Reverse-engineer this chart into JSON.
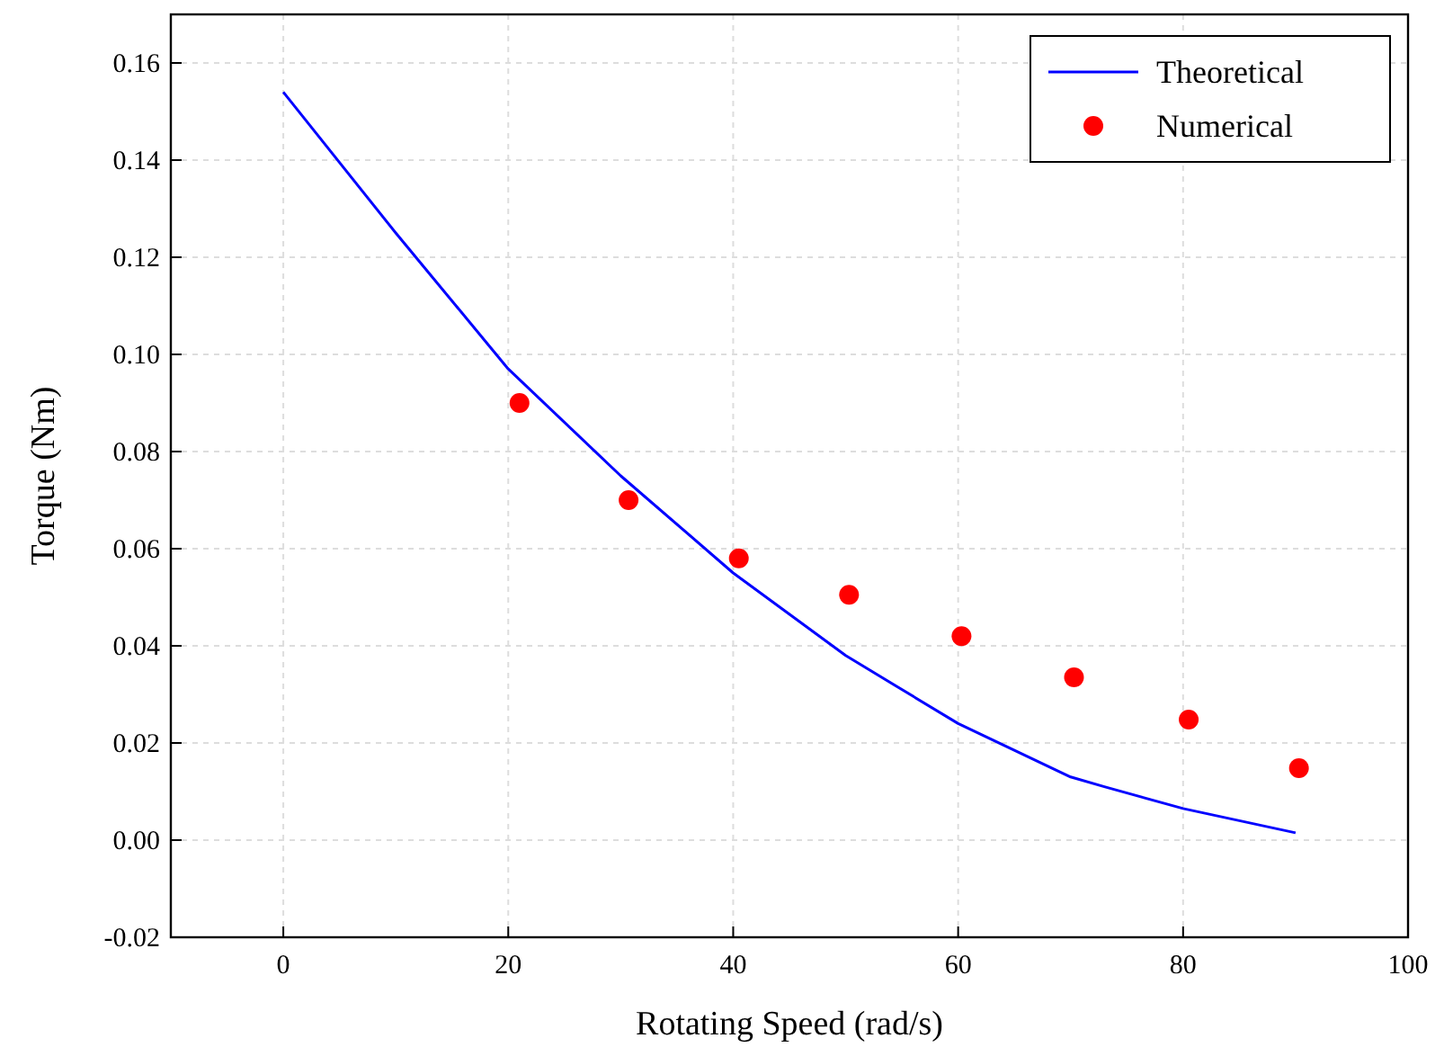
{
  "chart_data": {
    "type": "line",
    "xlabel": "Rotating Speed (rad/s)",
    "ylabel": "Torque (Nm)",
    "xlim": [
      -10,
      100
    ],
    "xticks": [
      0,
      20,
      40,
      60,
      80,
      100
    ],
    "ylim": [
      -0.02,
      0.17
    ],
    "yticks": [
      -0.02,
      {
        "value": 0,
        "label": "0.00"
      },
      0.02,
      0.04,
      0.06,
      0.08,
      {
        "value": 0.1,
        "label": "0.10"
      },
      0.12,
      0.14,
      0.16
    ],
    "grid": true,
    "legend": "top right",
    "series": [
      {
        "name": "Theoretical",
        "color": "#0000ff",
        "marker": "none",
        "x": [
          0,
          10,
          20,
          30,
          40,
          50,
          60,
          70,
          73,
          80,
          90
        ],
        "values": [
          0.154,
          0.125,
          0.097,
          0.075,
          0.055,
          0.038,
          0.024,
          0.013,
          0.011,
          0.0065,
          0.0015
        ]
      },
      {
        "name": "Numerical",
        "type": "scatter",
        "color": "#ff0000",
        "marker": "circle",
        "x": [
          21,
          30.7,
          40.5,
          50.3,
          60.3,
          70.3,
          80.5,
          90.3
        ],
        "values": [
          0.09,
          0.07,
          0.058,
          0.0505,
          0.042,
          0.0335,
          0.0248,
          0.0148
        ]
      }
    ]
  }
}
